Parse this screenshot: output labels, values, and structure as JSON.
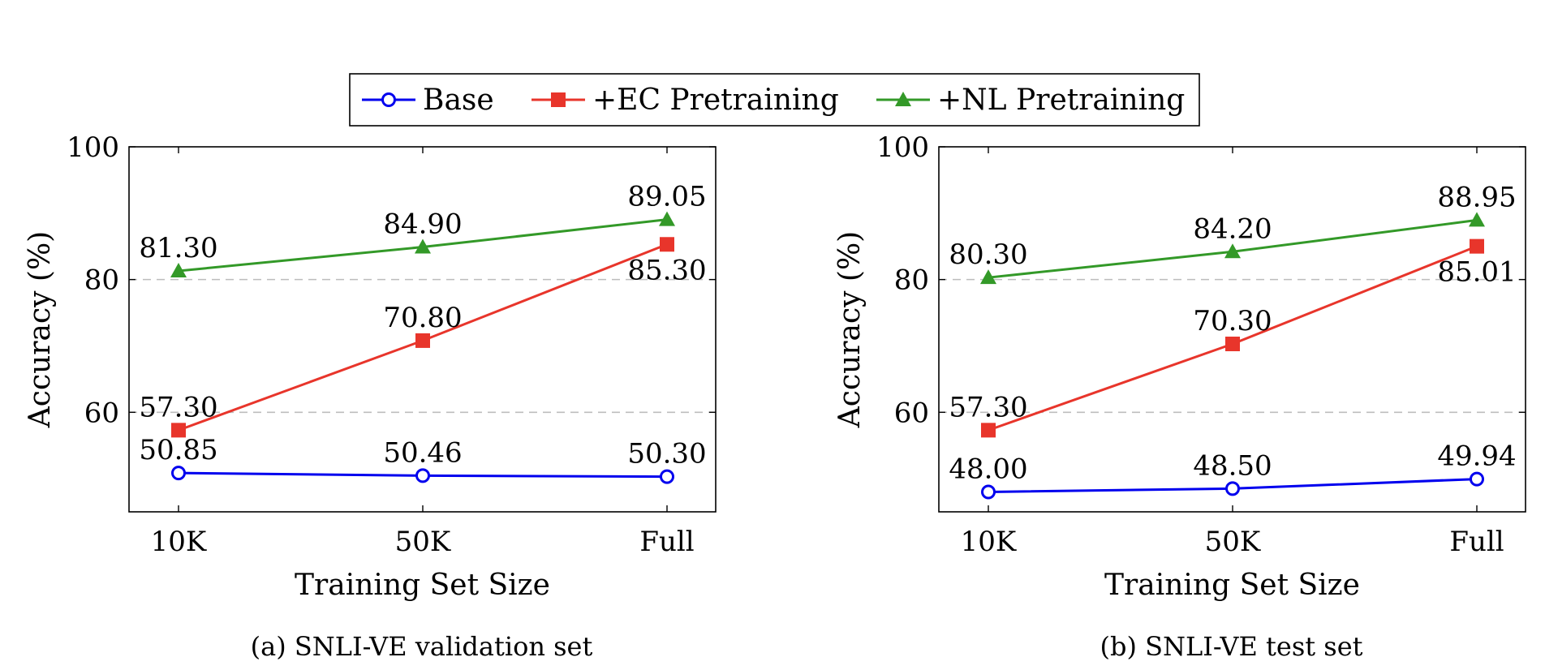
{
  "legend": {
    "entries": [
      {
        "name": "Base",
        "color": "#0000ee",
        "marker": "circle"
      },
      {
        "name": "+EC Pretraining",
        "color": "#e8352b",
        "marker": "square"
      },
      {
        "name": "+NL Pretraining",
        "color": "#339928",
        "marker": "triangle"
      }
    ]
  },
  "chart_data": [
    {
      "type": "line",
      "title": "",
      "caption": "(a) SNLI-VE validation set",
      "xlabel": "Training Set Size",
      "ylabel": "Accuracy (%)",
      "categories": [
        "10K",
        "50K",
        "Full"
      ],
      "ylim": [
        45,
        100
      ],
      "yticks": [
        60,
        80,
        100
      ],
      "grid": "dashed horizontal at 60 and 80",
      "series": [
        {
          "name": "Base",
          "values": [
            50.85,
            50.46,
            50.3
          ],
          "labels": [
            "50.85",
            "50.46",
            "50.30"
          ]
        },
        {
          "name": "+EC Pretraining",
          "values": [
            57.3,
            70.8,
            85.3
          ],
          "labels": [
            "57.30",
            "70.80",
            "85.30"
          ]
        },
        {
          "name": "+NL Pretraining",
          "values": [
            81.3,
            84.9,
            89.05
          ],
          "labels": [
            "81.30",
            "84.90",
            "89.05"
          ]
        }
      ]
    },
    {
      "type": "line",
      "title": "",
      "caption": "(b) SNLI-VE test set",
      "xlabel": "Training Set Size",
      "ylabel": "Accuracy (%)",
      "categories": [
        "10K",
        "50K",
        "Full"
      ],
      "ylim": [
        45,
        100
      ],
      "yticks": [
        60,
        80,
        100
      ],
      "grid": "dashed horizontal at 60 and 80",
      "series": [
        {
          "name": "Base",
          "values": [
            48.0,
            48.5,
            49.94
          ],
          "labels": [
            "48.00",
            "48.50",
            "49.94"
          ]
        },
        {
          "name": "+EC Pretraining",
          "values": [
            57.3,
            70.3,
            85.01
          ],
          "labels": [
            "57.30",
            "70.30",
            "85.01"
          ]
        },
        {
          "name": "+NL Pretraining",
          "values": [
            80.3,
            84.2,
            88.95
          ],
          "labels": [
            "80.30",
            "84.20",
            "88.95"
          ]
        }
      ]
    }
  ]
}
